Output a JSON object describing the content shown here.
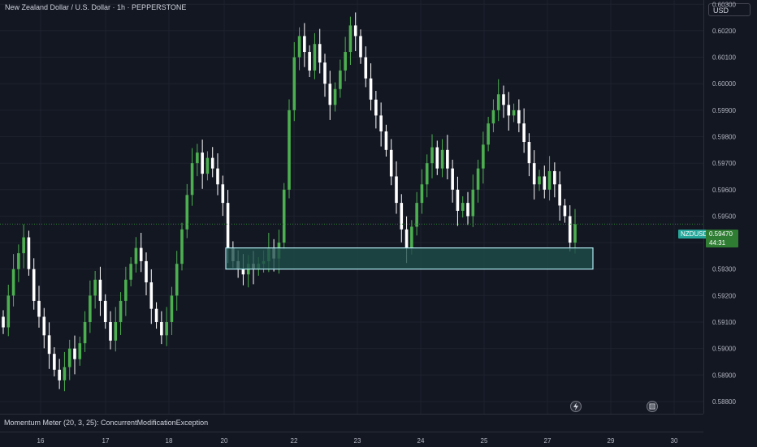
{
  "header": {
    "title": "New Zealand Dollar / U.S. Dollar · 1h · PEPPERSTONE"
  },
  "currency_button": {
    "label": "USD"
  },
  "indicator": {
    "label": "Momentum Meter (20, 3, 25): ConcurrentModificationException"
  },
  "price_axis": {
    "labels": [
      "0.60300",
      "0.60200",
      "0.60100",
      "0.60000",
      "0.59900",
      "0.59800",
      "0.59700",
      "0.59600",
      "0.59500",
      "0.59400",
      "0.59300",
      "0.59200",
      "0.59100",
      "0.59000",
      "0.58900",
      "0.58800"
    ]
  },
  "time_axis": {
    "labels": [
      "16",
      "17",
      "18",
      "20",
      "22",
      "23",
      "24",
      "25",
      "27",
      "29",
      "30"
    ]
  },
  "current_price": {
    "symbol": "NZDUSD",
    "price": "0.59470",
    "countdown": "44:31"
  },
  "colors": {
    "background": "#131722",
    "up": "#4caf50",
    "down": "#ffffff",
    "zone_fill": "#1e4d4a",
    "zone_border": "#b2ebf2",
    "grid": "#1e222d"
  },
  "icons": {
    "alert": "lightning-icon",
    "news": "news-icon"
  },
  "chart_data": {
    "type": "candlestick",
    "x_unit": "hour (1h bars)",
    "ylim": [
      0.5876,
      0.6031
    ],
    "zone": {
      "top": 0.5938,
      "bottom": 0.593
    },
    "closes": [
      0.5908,
      0.592,
      0.593,
      0.5936,
      0.5942,
      0.593,
      0.5918,
      0.5912,
      0.5905,
      0.5898,
      0.5892,
      0.5888,
      0.5893,
      0.59,
      0.5896,
      0.5902,
      0.591,
      0.592,
      0.5926,
      0.5918,
      0.591,
      0.5903,
      0.591,
      0.5918,
      0.5926,
      0.5932,
      0.5938,
      0.5933,
      0.5925,
      0.5915,
      0.591,
      0.5905,
      0.591,
      0.592,
      0.5932,
      0.5945,
      0.5958,
      0.597,
      0.5974,
      0.5966,
      0.5972,
      0.5968,
      0.5962,
      0.5955,
      0.5938,
      0.5933,
      0.593,
      0.5928,
      0.5932,
      0.593,
      0.5932,
      0.5933,
      0.5938,
      0.5934,
      0.594,
      0.596,
      0.599,
      0.601,
      0.6018,
      0.6012,
      0.6005,
      0.6015,
      0.6008,
      0.6,
      0.5992,
      0.5998,
      0.6005,
      0.6012,
      0.6022,
      0.6018,
      0.601,
      0.6002,
      0.5994,
      0.5988,
      0.5982,
      0.5975,
      0.5965,
      0.5955,
      0.5945,
      0.5938,
      0.5946,
      0.5955,
      0.5962,
      0.597,
      0.5976,
      0.5968,
      0.5975,
      0.5968,
      0.596,
      0.5952,
      0.5955,
      0.595,
      0.596,
      0.5968,
      0.5977,
      0.5985,
      0.599,
      0.5996,
      0.5992,
      0.5988,
      0.599,
      0.5985,
      0.5978,
      0.597,
      0.5962,
      0.5965,
      0.596,
      0.5967,
      0.5962,
      0.5954,
      0.595,
      0.594,
      0.5947
    ]
  }
}
